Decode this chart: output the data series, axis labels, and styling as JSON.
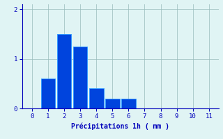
{
  "categories": [
    0,
    1,
    2,
    3,
    4,
    5,
    6,
    7,
    8,
    9,
    10,
    11
  ],
  "values": [
    0,
    0.6,
    1.5,
    1.25,
    0.4,
    0.2,
    0.2,
    0,
    0,
    0,
    0,
    0
  ],
  "bar_color": "#0044dd",
  "bar_edge_color": "#3399ff",
  "background_color": "#e0f4f4",
  "grid_color": "#99bbbb",
  "text_color": "#0000bb",
  "xlabel": "Précipitations 1h ( mm )",
  "ylim": [
    0,
    2.1
  ],
  "yticks": [
    0,
    1,
    2
  ],
  "xticks": [
    0,
    1,
    2,
    3,
    4,
    5,
    6,
    7,
    8,
    9,
    10,
    11
  ],
  "bar_width": 0.9
}
